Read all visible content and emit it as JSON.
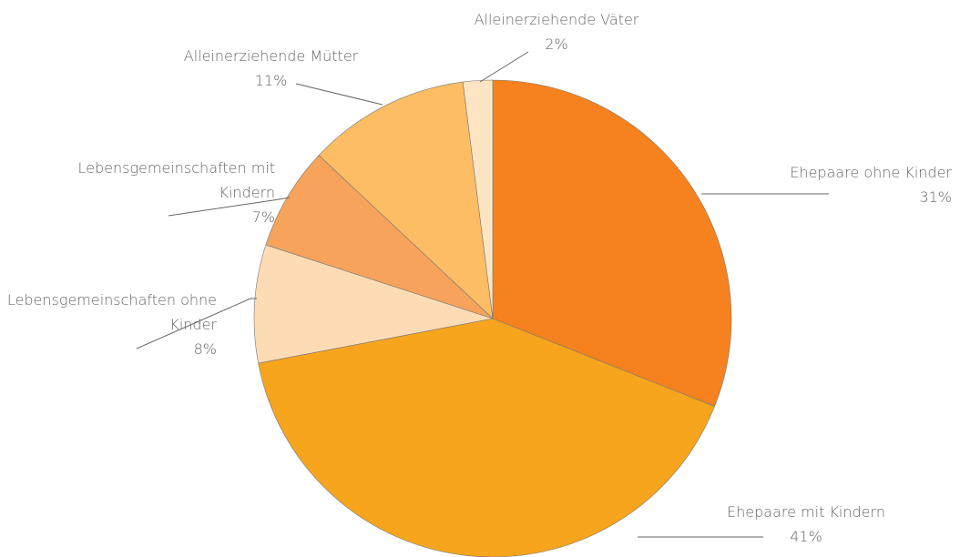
{
  "chart_data": {
    "type": "pie",
    "categories": [
      "Ehepaare ohne Kinder",
      "Ehepaare mit Kindern",
      "Lebensgemeinschaften ohne Kinder",
      "Lebensgemeinschaften mit Kindern",
      "Alleinerziehende Mütter",
      "Alleinerziehende Väter"
    ],
    "values": [
      31,
      41,
      8,
      7,
      11,
      2
    ],
    "value_labels": [
      "31%",
      "41%",
      "8%",
      "7%",
      "11%",
      "2%"
    ],
    "colors": [
      "#f5821f",
      "#f7a51c",
      "#fddcb5",
      "#f7a35c",
      "#fcbd64",
      "#fde5c4"
    ]
  }
}
